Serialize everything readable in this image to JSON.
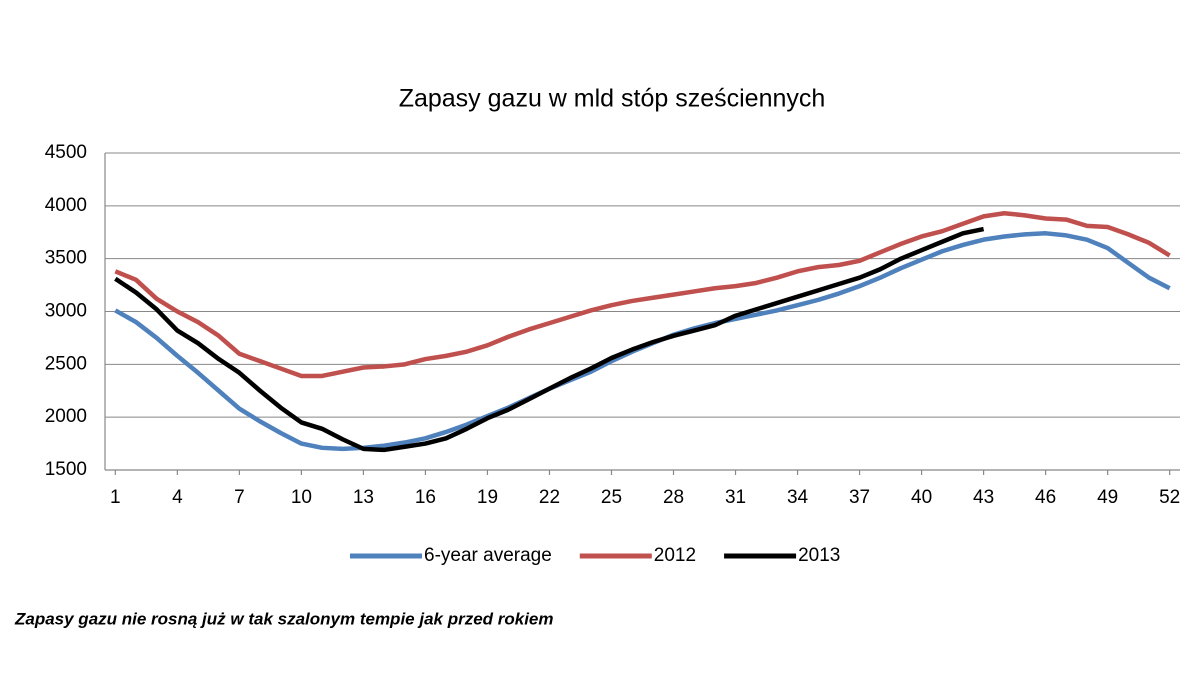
{
  "chart_data": {
    "type": "line",
    "title": "Zapasy gazu w mld stóp sześciennych",
    "caption": "Zapasy gazu nie rosną już w tak szalonym tempie jak przed rokiem",
    "x": [
      1,
      2,
      3,
      4,
      5,
      6,
      7,
      8,
      9,
      10,
      11,
      12,
      13,
      14,
      15,
      16,
      17,
      18,
      19,
      20,
      21,
      22,
      23,
      24,
      25,
      26,
      27,
      28,
      29,
      30,
      31,
      32,
      33,
      34,
      35,
      36,
      37,
      38,
      39,
      40,
      41,
      42,
      43,
      44,
      45,
      46,
      47,
      48,
      49,
      50,
      51,
      52
    ],
    "series": [
      {
        "name": "6-year average",
        "color": "#4f81bd",
        "values": [
          3010,
          2900,
          2750,
          2580,
          2420,
          2250,
          2080,
          1960,
          1850,
          1750,
          1710,
          1700,
          1710,
          1730,
          1760,
          1800,
          1860,
          1930,
          2010,
          2090,
          2180,
          2270,
          2350,
          2430,
          2530,
          2620,
          2700,
          2780,
          2840,
          2890,
          2930,
          2970,
          3010,
          3060,
          3110,
          3170,
          3240,
          3320,
          3410,
          3490,
          3570,
          3630,
          3680,
          3710,
          3730,
          3740,
          3720,
          3680,
          3600,
          3460,
          3320,
          3220
        ]
      },
      {
        "name": "2012",
        "color": "#c0504d",
        "values": [
          3380,
          3300,
          3120,
          3000,
          2900,
          2770,
          2600,
          2530,
          2460,
          2390,
          2390,
          2430,
          2470,
          2480,
          2500,
          2550,
          2580,
          2620,
          2680,
          2760,
          2830,
          2890,
          2950,
          3010,
          3060,
          3100,
          3130,
          3160,
          3190,
          3220,
          3240,
          3270,
          3320,
          3380,
          3420,
          3440,
          3480,
          3560,
          3640,
          3710,
          3760,
          3830,
          3900,
          3930,
          3910,
          3880,
          3870,
          3810,
          3800,
          3730,
          3650,
          3530
        ]
      },
      {
        "name": "2013",
        "color": "#000000",
        "values": [
          3310,
          3180,
          3020,
          2820,
          2700,
          2550,
          2420,
          2250,
          2090,
          1950,
          1890,
          1790,
          1700,
          1690,
          1720,
          1750,
          1800,
          1890,
          1990,
          2070,
          2170,
          2270,
          2370,
          2460,
          2560,
          2640,
          2710,
          2770,
          2820,
          2870,
          2960,
          3020,
          3080,
          3140,
          3200,
          3260,
          3320,
          3400,
          3500,
          3580,
          3660,
          3740,
          3780,
          null,
          null,
          null,
          null,
          null,
          null,
          null,
          null,
          null
        ]
      }
    ],
    "xlim": [
      0.5,
      52.5
    ],
    "xticks": [
      1,
      4,
      7,
      10,
      13,
      16,
      19,
      22,
      25,
      28,
      31,
      34,
      37,
      40,
      43,
      46,
      49,
      52
    ],
    "ylim": [
      1500,
      4500
    ],
    "yticks": [
      1500,
      2000,
      2500,
      3000,
      3500,
      4000,
      4500
    ],
    "grid": true,
    "legend": "bottom"
  }
}
